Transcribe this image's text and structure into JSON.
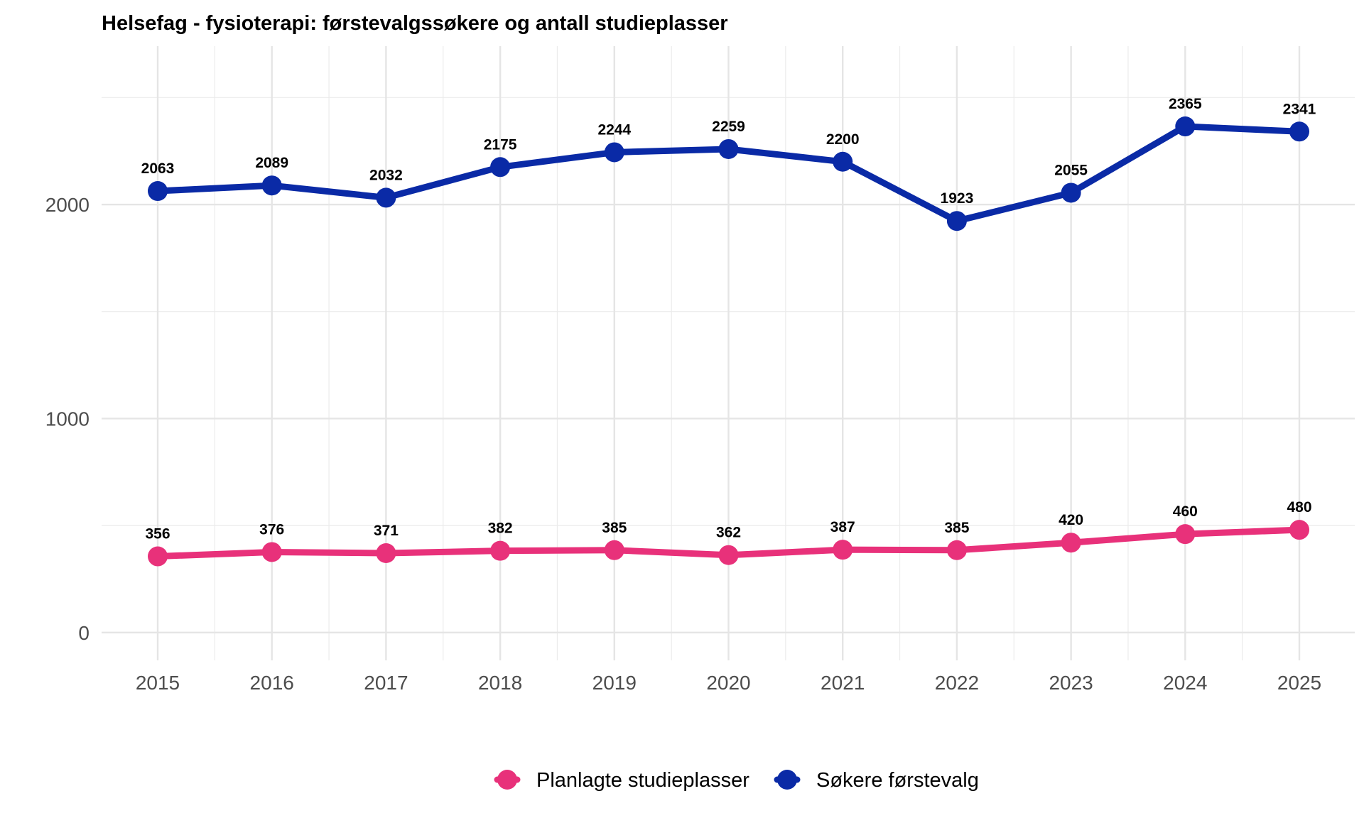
{
  "chart_data": {
    "type": "line",
    "title": "Helsefag - fysioterapi: førstevalgssøkere og antall studieplasser",
    "subtitle": "",
    "xlabel": "",
    "ylabel": "",
    "x": [
      "2015",
      "2016",
      "2017",
      "2018",
      "2019",
      "2020",
      "2021",
      "2022",
      "2023",
      "2024",
      "2025"
    ],
    "ylim": [
      -130,
      2740
    ],
    "yticks": [
      "0",
      "1000",
      "2000"
    ],
    "grid": true,
    "legend_position": "bottom",
    "series": [
      {
        "name": "Søkere førstevalg",
        "color": "#0a2aa6",
        "values": [
          2063,
          2089,
          2032,
          2175,
          2244,
          2259,
          2200,
          1923,
          2055,
          2365,
          2341
        ],
        "labels": [
          "2063",
          "2089",
          "2032",
          "2175",
          "2244",
          "2259",
          "2200",
          "1923",
          "2055",
          "2365",
          "2341"
        ]
      },
      {
        "name": "Planlagte studieplasser",
        "color": "#e8317a",
        "values": [
          356,
          376,
          371,
          382,
          385,
          362,
          387,
          385,
          420,
          460,
          480
        ],
        "labels": [
          "356",
          "376",
          "371",
          "382",
          "385",
          "362",
          "387",
          "385",
          "420",
          "460",
          "480"
        ]
      }
    ],
    "legend": [
      {
        "name": "Planlagte studieplasser",
        "color": "#e8317a"
      },
      {
        "name": "Søkere førstevalg",
        "color": "#0a2aa6"
      }
    ]
  }
}
